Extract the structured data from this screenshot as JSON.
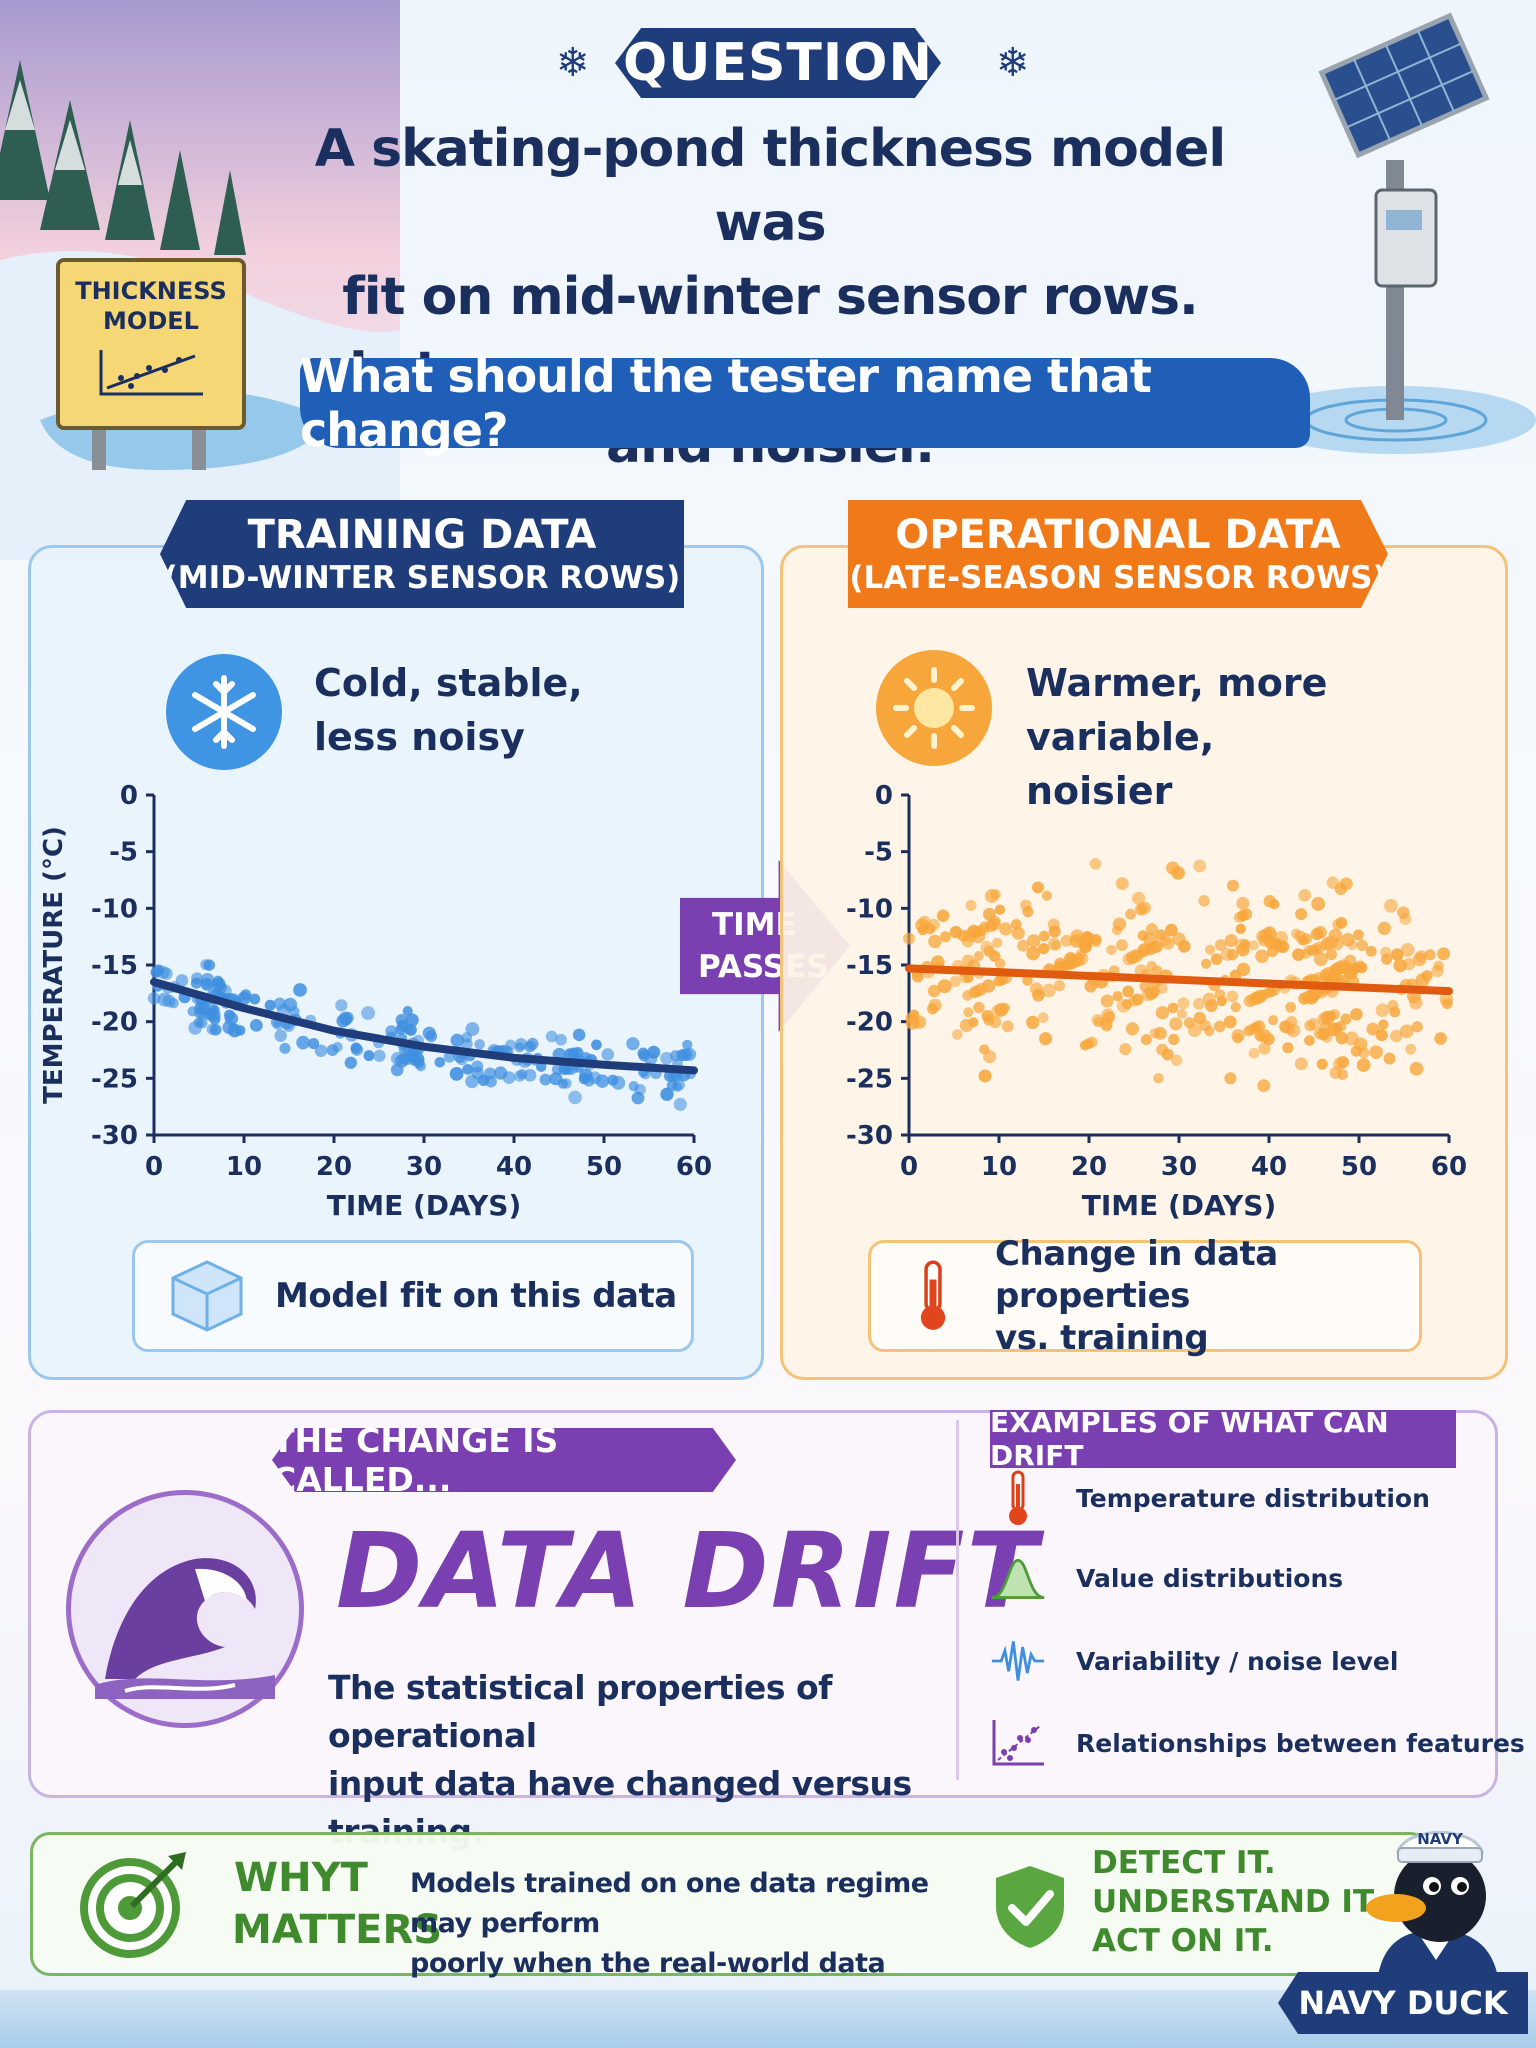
{
  "header": {
    "question_label": "QUESTION",
    "question_lines": [
      "A skating-pond thickness model was",
      "fit on mid-winter sensor rows.",
      "Late-season rows are warmer and noisier."
    ],
    "prompt": "What should the tester name that change?",
    "sign_text_1": "THICKNESS",
    "sign_text_2": "MODEL"
  },
  "training": {
    "title": "TRAINING DATA",
    "subtitle": "(MID-WINTER SENSOR ROWS)",
    "desc_1": "Cold, stable,",
    "desc_2": "less noisy",
    "note": "Model fit on this data",
    "icon": "snowflake-icon",
    "color": "#3f95e3"
  },
  "operational": {
    "title": "OPERATIONAL DATA",
    "subtitle": "(LATE-SEASON SENSOR ROWS)",
    "desc_1": "Warmer, more variable,",
    "desc_2": "noisier",
    "note_1": "Change in data properties",
    "note_2": "vs. training",
    "icon": "sun-icon",
    "color": "#f7a63b"
  },
  "arrow": {
    "line_1": "TIME",
    "line_2": "PASSES"
  },
  "chart_data": [
    {
      "type": "scatter",
      "series": [
        {
          "kind": "points",
          "color": "#3f8fe0"
        },
        {
          "kind": "trend",
          "color": "#1f3d7a",
          "x": [
            0,
            10,
            20,
            30,
            40,
            50,
            60
          ],
          "y": [
            -16.5,
            -18.8,
            -20.8,
            -22.2,
            -23.2,
            -23.8,
            -24.3
          ]
        }
      ],
      "point_center": [
        -16.5,
        -18.8,
        -20.8,
        -22.2,
        -23.2,
        -23.8,
        -24.3
      ],
      "noise": 2.0,
      "xlabel": "TIME (DAYS)",
      "ylabel": "TEMPERATURE (°C)",
      "xlim": [
        0,
        60
      ],
      "ylim": [
        -30,
        0
      ],
      "xticks": [
        "0",
        "10",
        "20",
        "30",
        "40",
        "50",
        "60"
      ],
      "yticks": [
        "0",
        "-5",
        "-10",
        "-15",
        "-20",
        "-25",
        "-30"
      ]
    },
    {
      "type": "scatter",
      "series": [
        {
          "kind": "points",
          "color": "#f7a63b"
        },
        {
          "kind": "trend",
          "color": "#e05a10",
          "x": [
            0,
            60
          ],
          "y": [
            -15.3,
            -17.3
          ]
        }
      ],
      "point_center": [
        -15.3,
        -15.6,
        -15.9,
        -16.2,
        -16.6,
        -16.9,
        -17.3
      ],
      "noise": 6.0,
      "xlabel": "TIME (DAYS)",
      "ylabel": "",
      "xlim": [
        0,
        60
      ],
      "ylim": [
        -30,
        0
      ],
      "xticks": [
        "0",
        "10",
        "20",
        "30",
        "40",
        "50",
        "60"
      ],
      "yticks": [
        "0",
        "-5",
        "-10",
        "-15",
        "-20",
        "-25",
        "-30"
      ]
    }
  ],
  "drift": {
    "tag": "THE CHANGE IS CALLED...",
    "title": "DATA DRIFT",
    "def_1": "The statistical properties of operational",
    "def_2": "input data have changed versus training.",
    "examples_title": "EXAMPLES OF WHAT CAN DRIFT",
    "examples": [
      {
        "label": "Temperature distribution",
        "icon": "thermometer-icon"
      },
      {
        "label": "Value distributions",
        "icon": "bell-curve-icon"
      },
      {
        "label": "Variability / noise level",
        "icon": "waveform-icon"
      },
      {
        "label": "Relationships between features",
        "icon": "scatter-icon"
      }
    ]
  },
  "why": {
    "label_1": "WHYT",
    "label_2": "MATTERS",
    "text_1": "Models trained on one data regime may perform",
    "text_2": "poorly when the real-world data regime changes.",
    "action_1": "DETECT IT.",
    "action_2": "UNDERSTAND IT.",
    "action_3": "ACT ON IT."
  },
  "mascot": {
    "hat": "NAVY",
    "name": "NAVY DUCK"
  }
}
